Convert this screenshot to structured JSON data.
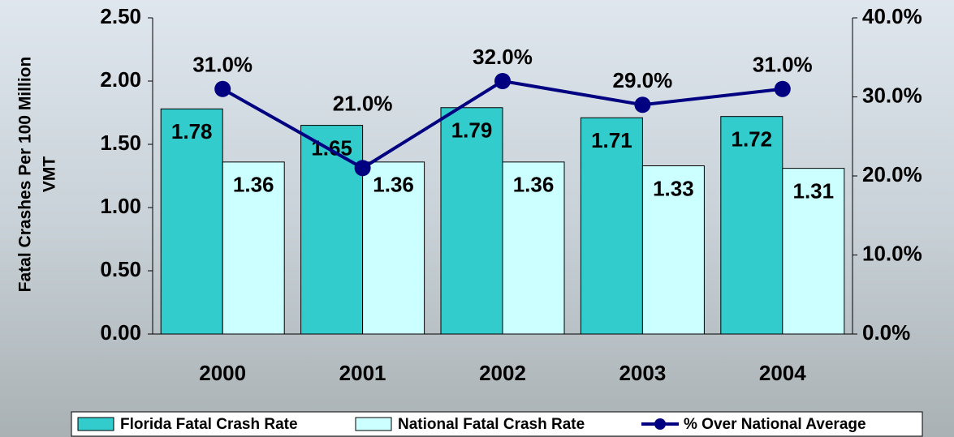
{
  "chart_data": {
    "type": "bar_line",
    "ylabel": [
      "Fatal Crashes Per 100 Million",
      "VMT"
    ],
    "categories": [
      "2000",
      "2001",
      "2002",
      "2003",
      "2004"
    ],
    "series": [
      {
        "name": "Florida Fatal Crash Rate",
        "color": "#33cccc",
        "type": "bar",
        "values": [
          1.78,
          1.65,
          1.79,
          1.71,
          1.72
        ]
      },
      {
        "name": "National Fatal Crash Rate",
        "color": "#ccffff",
        "type": "bar",
        "values": [
          1.36,
          1.36,
          1.36,
          1.33,
          1.31
        ]
      },
      {
        "name": "% Over National Average",
        "color": "#000080",
        "type": "line",
        "axis": "y2",
        "values": [
          31,
          21,
          32,
          29,
          31
        ],
        "value_labels": [
          "31.0%",
          "21.0%",
          "32.0%",
          "29.0%",
          "31.0%"
        ]
      }
    ],
    "ylim": [
      0,
      2.5
    ],
    "yticks": [
      {
        "value": 0,
        "label": "0.00"
      },
      {
        "value": 0.5,
        "label": "0.50"
      },
      {
        "value": 1,
        "label": "1.00"
      },
      {
        "value": 1.5,
        "label": "1.50"
      },
      {
        "value": 2,
        "label": "2.00"
      },
      {
        "value": 2.5,
        "label": "2.50"
      }
    ],
    "y2lim": [
      0,
      40
    ],
    "y2ticks": [
      {
        "value": 0,
        "label": "0.0%"
      },
      {
        "value": 10,
        "label": "10.0%"
      },
      {
        "value": 20,
        "label": "20.0%"
      },
      {
        "value": 30,
        "label": "30.0%"
      },
      {
        "value": 40,
        "label": "40.0%"
      }
    ],
    "legend": "bottom"
  }
}
